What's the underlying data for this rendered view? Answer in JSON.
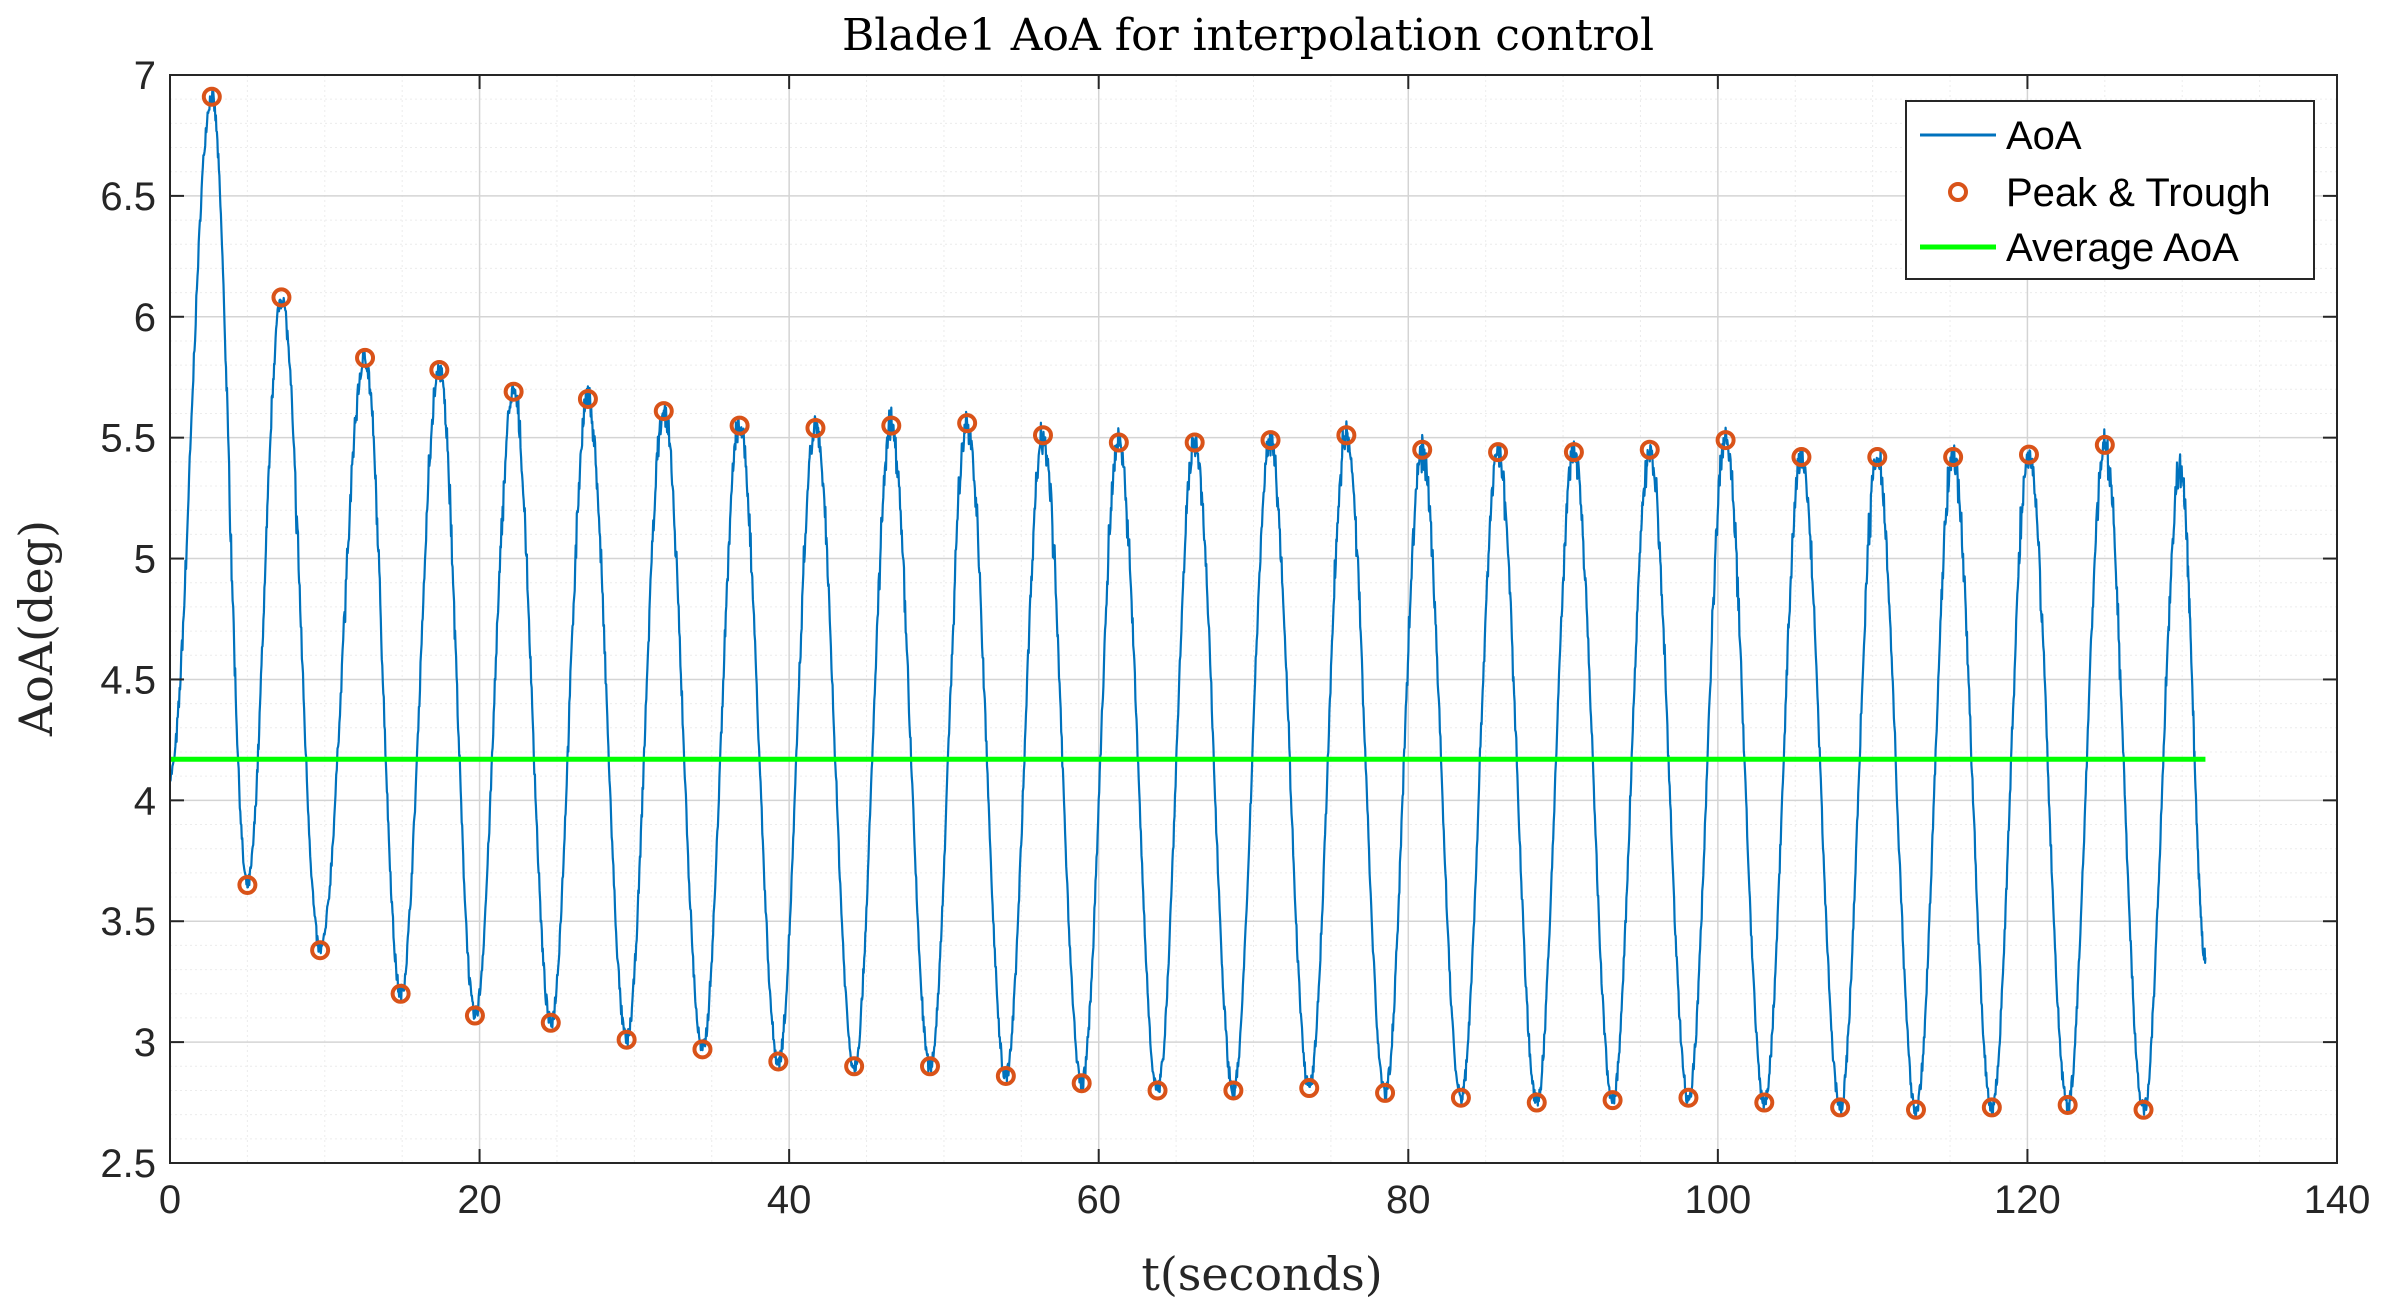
{
  "chart_data": {
    "type": "line",
    "title": "Blade1 AoA for interpolation control",
    "xlabel": "t(seconds)",
    "ylabel": "AoA(deg)",
    "xlim": [
      0,
      140
    ],
    "ylim": [
      2.5,
      7
    ],
    "x_ticks": [
      0,
      20,
      40,
      60,
      80,
      100,
      120,
      140
    ],
    "y_ticks": [
      2.5,
      3,
      3.5,
      4,
      4.5,
      5,
      5.5,
      6,
      6.5,
      7
    ],
    "x_tick_labels": [
      "0",
      "20",
      "40",
      "60",
      "80",
      "100",
      "120",
      "140"
    ],
    "y_tick_labels": [
      "2.5",
      "3",
      "3.5",
      "4",
      "4.5",
      "5",
      "5.5",
      "6",
      "6.5",
      "7"
    ],
    "grid": true,
    "legend_position": "top-right",
    "series": [
      {
        "name": "AoA",
        "color": "#0072BD",
        "t_start": 0,
        "t_end": 131.5,
        "start_value": 4.1,
        "end_value": 3.35
      },
      {
        "name": "Peak & Trough",
        "color": "#D95319",
        "peaks": {
          "t": [
            2.7,
            7.2,
            12.6,
            17.4,
            22.2,
            27.0,
            31.9,
            36.8,
            41.7,
            46.6,
            51.5,
            56.4,
            61.3,
            66.2,
            71.1,
            76.0,
            80.9,
            85.8,
            90.7,
            95.6,
            100.5,
            105.4,
            110.3,
            115.2,
            120.1,
            125.0
          ],
          "v": [
            6.91,
            6.08,
            5.83,
            5.78,
            5.69,
            5.66,
            5.61,
            5.55,
            5.54,
            5.55,
            5.56,
            5.51,
            5.48,
            5.48,
            5.49,
            5.51,
            5.45,
            5.44,
            5.44,
            5.45,
            5.49,
            5.42,
            5.42,
            5.42,
            5.43,
            5.47
          ]
        },
        "troughs": {
          "t": [
            5.0,
            9.7,
            14.9,
            19.7,
            24.6,
            29.5,
            34.4,
            39.3,
            44.2,
            49.1,
            54.0,
            58.9,
            63.8,
            68.7,
            73.6,
            78.5,
            83.4,
            88.3,
            93.2,
            98.1,
            103.0,
            107.9,
            112.8,
            117.7,
            122.6,
            127.5
          ],
          "v": [
            3.65,
            3.38,
            3.2,
            3.11,
            3.08,
            3.01,
            2.97,
            2.92,
            2.9,
            2.9,
            2.86,
            2.83,
            2.8,
            2.8,
            2.81,
            2.79,
            2.77,
            2.75,
            2.76,
            2.77,
            2.75,
            2.73,
            2.72,
            2.73,
            2.74,
            2.72
          ]
        }
      },
      {
        "name": "Average AoA",
        "color": "#00FF00",
        "value": 4.17,
        "t_start": 0,
        "t_end": 131.5
      }
    ]
  }
}
